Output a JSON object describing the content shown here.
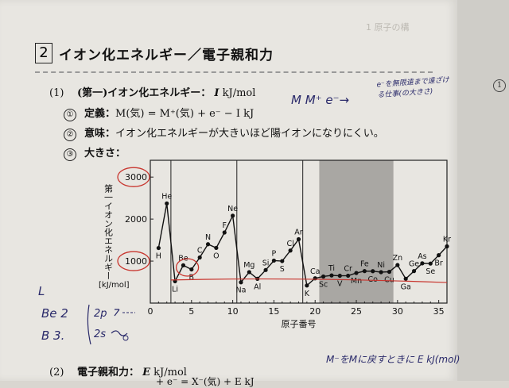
{
  "header_faint": "1 原子の構",
  "section": {
    "number": "2",
    "title": "イオン化エネルギー／電子親和力"
  },
  "part1": {
    "label": "(1)",
    "heading": "(第一)イオン化エネルギー：",
    "symbol": "I",
    "unit": "kJ/mol",
    "items": [
      {
        "num": "①",
        "label": "定義：",
        "text": "M(気) = M⁺(気) + e⁻ − I kJ"
      },
      {
        "num": "②",
        "label": "意味：",
        "text": "イオン化エネルギーが大きいほど陽イオンになりにくい。"
      },
      {
        "num": "③",
        "label": "大きさ：",
        "text": ""
      }
    ]
  },
  "handwriting": {
    "m_arrow": "M   M⁺ e⁻→",
    "note": "e⁻を無限遠まで遠ざける仕事(の大きさ)",
    "l_mark": "L",
    "be": "Be  2",
    "b": "B   3.",
    "orbital_2p": "2p",
    "orbital_2s": "2s",
    "bottom_note": "M⁻をMに戻すときに E kJ(mol)"
  },
  "part2": {
    "label": "(2)",
    "heading": "電子親和力：",
    "symbol": "E",
    "unit": "kJ/mol",
    "cut_text": "+ e⁻ = X⁻(気) + E kJ"
  },
  "chart_data": {
    "type": "line",
    "ylabel": "第一イオン化エネルギー",
    "yunit": "[kJ/mol]",
    "xlabel": "原子番号",
    "xlim": [
      0,
      36
    ],
    "ylim": [
      0,
      3400
    ],
    "xticks": [
      0,
      5,
      10,
      15,
      20,
      25,
      30,
      35
    ],
    "yticks": [
      1000,
      2000,
      3000
    ],
    "series": [
      {
        "x": [
          1,
          2,
          3,
          4,
          5,
          6,
          7,
          8,
          9,
          10,
          11,
          12,
          13,
          14,
          15,
          16,
          17,
          18,
          19,
          20,
          21,
          22,
          23,
          24,
          25,
          26,
          27,
          28,
          29,
          30,
          31,
          32,
          33,
          34,
          35,
          36
        ],
        "values": [
          1312,
          2372,
          520,
          900,
          801,
          1086,
          1402,
          1314,
          1681,
          2081,
          496,
          738,
          578,
          787,
          1012,
          1000,
          1251,
          1521,
          419,
          590,
          633,
          659,
          651,
          653,
          717,
          762,
          760,
          737,
          745,
          906,
          579,
          762,
          947,
          941,
          1140,
          1351
        ]
      }
    ],
    "labels": [
      "H",
      "He",
      "Li",
      "Be",
      "B",
      "C",
      "N",
      "O",
      "F",
      "Ne",
      "Na",
      "Mg",
      "Al",
      "Si",
      "P",
      "S",
      "Cl",
      "Ar",
      "K",
      "Ca",
      "Sc",
      "Ti",
      "V",
      "Cr",
      "Mn",
      "Fe",
      "Co",
      "Ni",
      "Cu",
      "Zn",
      "Ga",
      "Ge",
      "As",
      "Se",
      "Br",
      "Kr"
    ],
    "period_lines": [
      2.5,
      10.5,
      18.5
    ],
    "shaded_region": [
      20.5,
      29.5
    ],
    "grid": false
  }
}
